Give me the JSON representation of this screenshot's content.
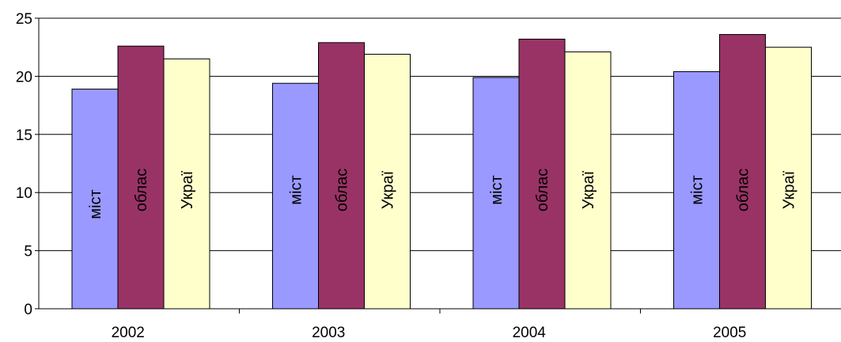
{
  "chart_data": {
    "type": "bar",
    "title": "",
    "xlabel": "",
    "ylabel": "",
    "categories": [
      "2002",
      "2003",
      "2004",
      "2005"
    ],
    "ylim": [
      0,
      25
    ],
    "yticks": [
      "0",
      "5",
      "10",
      "15",
      "20",
      "25"
    ],
    "grid": true,
    "legend": "none",
    "series": [
      {
        "label": "міст",
        "color": "#9999ff",
        "values": [
          18.9,
          19.4,
          19.9,
          20.4
        ]
      },
      {
        "label": "облас",
        "color": "#993366",
        "values": [
          22.6,
          22.9,
          23.2,
          23.6
        ]
      },
      {
        "label": "Украї",
        "color": "#ffffcc",
        "values": [
          21.5,
          21.9,
          22.1,
          22.5
        ]
      }
    ]
  }
}
